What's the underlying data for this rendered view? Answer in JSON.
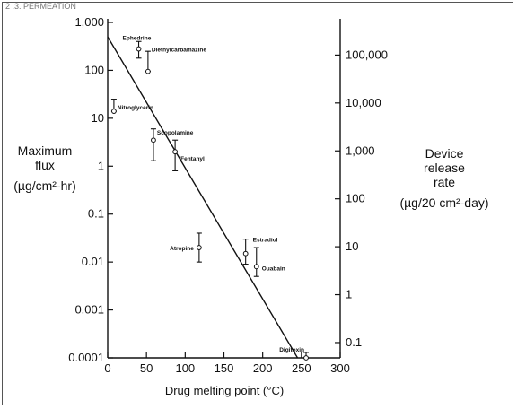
{
  "header_text": "2 .3. PERMEATION",
  "chart_data": {
    "type": "scatter",
    "xlabel": "Drug melting point (°C)",
    "ylabel_left": [
      "Maximum",
      "flux",
      "(µg/cm²-hr)"
    ],
    "ylabel_right": [
      "Device",
      "release",
      "rate",
      "(µg/20 cm²-day)"
    ],
    "xlim": [
      0,
      300
    ],
    "ylim": [
      0.0001,
      1000
    ],
    "y_scale": "log",
    "x_ticks": [
      "0",
      "50",
      "100",
      "150",
      "200",
      "250",
      "300"
    ],
    "y_ticks_left": [
      "0.0001",
      "0.001",
      "0.01",
      "0.1",
      "1",
      "10",
      "100",
      "1,000"
    ],
    "y_ticks_right": [
      "0.1",
      "1",
      "10",
      "100",
      "1,000",
      "10,000",
      "100,000"
    ],
    "y_ticks_right_values": [
      0.1,
      1,
      10,
      100,
      1000,
      10000,
      100000
    ],
    "trend_line": {
      "x": [
        0,
        245
      ],
      "y": [
        500,
        0.0001
      ]
    },
    "points": [
      {
        "label": "Ephedrine",
        "x": 40,
        "y": 280,
        "y_low": 180,
        "y_high": 400
      },
      {
        "label": "Diethylcarbamazine",
        "x": 52,
        "y": 95,
        "y_low": 95,
        "y_high": 250
      },
      {
        "label": "Nitroglycerin",
        "x": 8,
        "y": 14,
        "y_low": 14,
        "y_high": 25
      },
      {
        "label": "Scopolamine",
        "x": 59,
        "y": 3.5,
        "y_low": 1.3,
        "y_high": 6
      },
      {
        "label": "Fentanyl",
        "x": 87,
        "y": 2,
        "y_low": 0.8,
        "y_high": 3.5
      },
      {
        "label": "Atropine",
        "x": 118,
        "y": 0.02,
        "y_low": 0.01,
        "y_high": 0.04
      },
      {
        "label": "Estradiol",
        "x": 178,
        "y": 0.015,
        "y_low": 0.009,
        "y_high": 0.03
      },
      {
        "label": "Ouabain",
        "x": 192,
        "y": 0.008,
        "y_low": 0.005,
        "y_high": 0.02
      },
      {
        "label": "Digitoxin",
        "x": 256,
        "y": 0.0001,
        "y_low": 0.0001,
        "y_high": 0.00013
      }
    ]
  }
}
